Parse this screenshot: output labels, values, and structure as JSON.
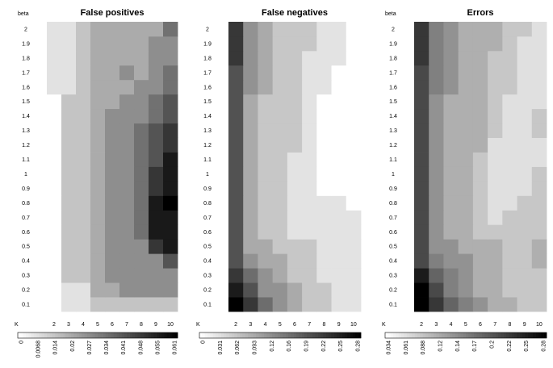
{
  "chart_data": [
    {
      "type": "heatmap",
      "title": "False positives",
      "xlabel": "K",
      "ylabel": "beta",
      "x": [
        2,
        3,
        4,
        5,
        6,
        7,
        8,
        9,
        10
      ],
      "y": [
        "0.1",
        "0.2",
        "0.3",
        "0.4",
        "0.5",
        "0.6",
        "0.7",
        "0.8",
        "0.9",
        "1",
        "1.1",
        "1.2",
        "1.3",
        "1.4",
        "1.5",
        "1.6",
        "1.7",
        "1.8",
        "1.9",
        "2"
      ],
      "colorbar": {
        "min": 0,
        "max": 0.061,
        "ticks": [
          "0",
          "0.0068",
          "0.014",
          "0.02",
          "0.027",
          "0.034",
          "0.041",
          "0.048",
          "0.055",
          "0.061"
        ]
      },
      "values": [
        [
          0,
          0.007,
          0.007,
          0.014,
          0.014,
          0.014,
          0.014,
          0.014,
          0.014
        ],
        [
          0,
          0.007,
          0.007,
          0.02,
          0.02,
          0.027,
          0.027,
          0.027,
          0.027
        ],
        [
          0,
          0.014,
          0.014,
          0.02,
          0.027,
          0.027,
          0.027,
          0.027,
          0.027
        ],
        [
          0,
          0.014,
          0.014,
          0.02,
          0.027,
          0.027,
          0.027,
          0.027,
          0.041
        ],
        [
          0,
          0.014,
          0.014,
          0.02,
          0.027,
          0.027,
          0.027,
          0.048,
          0.055
        ],
        [
          0,
          0.014,
          0.014,
          0.02,
          0.027,
          0.027,
          0.034,
          0.055,
          0.055
        ],
        [
          0,
          0.014,
          0.014,
          0.02,
          0.027,
          0.027,
          0.034,
          0.055,
          0.055
        ],
        [
          0,
          0.014,
          0.014,
          0.02,
          0.027,
          0.027,
          0.034,
          0.055,
          0.061
        ],
        [
          0,
          0.014,
          0.014,
          0.02,
          0.027,
          0.027,
          0.034,
          0.048,
          0.055
        ],
        [
          0,
          0.014,
          0.014,
          0.02,
          0.027,
          0.027,
          0.034,
          0.048,
          0.055
        ],
        [
          0,
          0.014,
          0.014,
          0.02,
          0.027,
          0.027,
          0.034,
          0.041,
          0.055
        ],
        [
          0,
          0.014,
          0.014,
          0.02,
          0.027,
          0.027,
          0.034,
          0.041,
          0.048
        ],
        [
          0,
          0.014,
          0.014,
          0.02,
          0.027,
          0.027,
          0.034,
          0.041,
          0.048
        ],
        [
          0,
          0.014,
          0.014,
          0.02,
          0.027,
          0.027,
          0.027,
          0.034,
          0.041
        ],
        [
          0,
          0.014,
          0.014,
          0.02,
          0.02,
          0.027,
          0.027,
          0.034,
          0.041
        ],
        [
          0.007,
          0.007,
          0.014,
          0.02,
          0.02,
          0.02,
          0.027,
          0.027,
          0.034
        ],
        [
          0.007,
          0.007,
          0.014,
          0.02,
          0.02,
          0.027,
          0.02,
          0.027,
          0.034
        ],
        [
          0.007,
          0.007,
          0.014,
          0.02,
          0.02,
          0.02,
          0.02,
          0.027,
          0.027
        ],
        [
          0.007,
          0.007,
          0.014,
          0.02,
          0.02,
          0.02,
          0.02,
          0.027,
          0.027
        ],
        [
          0.007,
          0.007,
          0.014,
          0.02,
          0.02,
          0.02,
          0.02,
          0.02,
          0.034
        ]
      ]
    },
    {
      "type": "heatmap",
      "title": "False negatives",
      "xlabel": "K",
      "ylabel": "",
      "x": [
        2,
        3,
        4,
        5,
        6,
        7,
        8,
        9,
        10
      ],
      "y": [
        "0.1",
        "0.2",
        "0.3",
        "0.4",
        "0.5",
        "0.6",
        "0.7",
        "0.8",
        "0.9",
        "1",
        "1.1",
        "1.2",
        "1.3",
        "1.4",
        "1.5",
        "1.6",
        "1.7",
        "1.8",
        "1.9",
        "2"
      ],
      "colorbar": {
        "min": 0,
        "max": 0.28,
        "ticks": [
          "0",
          "0.031",
          "0.062",
          "0.093",
          "0.12",
          "0.16",
          "0.19",
          "0.22",
          "0.25",
          "0.28"
        ]
      },
      "values": [
        [
          0.28,
          0.22,
          0.16,
          0.12,
          0.093,
          0.062,
          0.062,
          0.031,
          0.031
        ],
        [
          0.25,
          0.19,
          0.12,
          0.12,
          0.093,
          0.062,
          0.062,
          0.031,
          0.031
        ],
        [
          0.22,
          0.16,
          0.12,
          0.093,
          0.062,
          0.062,
          0.031,
          0.031,
          0.031
        ],
        [
          0.19,
          0.12,
          0.093,
          0.093,
          0.062,
          0.062,
          0.031,
          0.031,
          0.031
        ],
        [
          0.19,
          0.093,
          0.093,
          0.062,
          0.062,
          0.062,
          0.031,
          0.031,
          0.031
        ],
        [
          0.19,
          0.093,
          0.062,
          0.062,
          0.031,
          0.031,
          0.031,
          0.031,
          0.031
        ],
        [
          0.19,
          0.093,
          0.062,
          0.062,
          0.031,
          0.031,
          0.031,
          0.031,
          0.031
        ],
        [
          0.19,
          0.093,
          0.062,
          0.062,
          0.031,
          0.031,
          0.031,
          0.031,
          0
        ],
        [
          0.19,
          0.093,
          0.062,
          0.062,
          0.031,
          0.031,
          0,
          0,
          0
        ],
        [
          0.19,
          0.093,
          0.062,
          0.062,
          0.031,
          0.031,
          0,
          0,
          0
        ],
        [
          0.19,
          0.093,
          0.062,
          0.062,
          0.031,
          0.031,
          0,
          0,
          0
        ],
        [
          0.19,
          0.093,
          0.062,
          0.062,
          0.062,
          0.031,
          0,
          0,
          0
        ],
        [
          0.19,
          0.093,
          0.062,
          0.062,
          0.062,
          0.031,
          0,
          0,
          0
        ],
        [
          0.19,
          0.093,
          0.062,
          0.062,
          0.062,
          0.031,
          0,
          0,
          0
        ],
        [
          0.19,
          0.093,
          0.062,
          0.062,
          0.062,
          0.031,
          0,
          0,
          0
        ],
        [
          0.19,
          0.12,
          0.093,
          0.062,
          0.062,
          0.031,
          0.031,
          0,
          0
        ],
        [
          0.19,
          0.12,
          0.093,
          0.062,
          0.062,
          0.031,
          0.031,
          0,
          0
        ],
        [
          0.22,
          0.12,
          0.093,
          0.062,
          0.062,
          0.031,
          0.031,
          0.031,
          0
        ],
        [
          0.22,
          0.12,
          0.093,
          0.062,
          0.062,
          0.062,
          0.031,
          0.031,
          0
        ],
        [
          0.22,
          0.12,
          0.093,
          0.062,
          0.062,
          0.062,
          0.031,
          0.031,
          0
        ]
      ]
    },
    {
      "type": "heatmap",
      "title": "Errors",
      "xlabel": "K",
      "ylabel": "beta",
      "x": [
        2,
        3,
        4,
        5,
        6,
        7,
        8,
        9,
        10
      ],
      "y": [
        "0.1",
        "0.2",
        "0.3",
        "0.4",
        "0.5",
        "0.6",
        "0.7",
        "0.8",
        "0.9",
        "1",
        "1.1",
        "1.2",
        "1.3",
        "1.4",
        "1.5",
        "1.6",
        "1.7",
        "1.8",
        "1.9",
        "2"
      ],
      "colorbar": {
        "min": 0,
        "max": 0.28,
        "ticks": [
          "0.034",
          "0.061",
          "0.088",
          "0.12",
          "0.14",
          "0.17",
          "0.2",
          "0.22",
          "0.25",
          "0.28"
        ]
      },
      "values": [
        [
          0.28,
          0.22,
          0.17,
          0.14,
          0.12,
          0.088,
          0.088,
          0.061,
          0.061
        ],
        [
          0.28,
          0.2,
          0.14,
          0.12,
          0.088,
          0.088,
          0.061,
          0.061,
          0.061
        ],
        [
          0.25,
          0.17,
          0.14,
          0.12,
          0.088,
          0.088,
          0.061,
          0.061,
          0.061
        ],
        [
          0.2,
          0.14,
          0.12,
          0.12,
          0.088,
          0.088,
          0.061,
          0.061,
          0.088
        ],
        [
          0.2,
          0.12,
          0.12,
          0.088,
          0.088,
          0.088,
          0.061,
          0.061,
          0.088
        ],
        [
          0.2,
          0.12,
          0.088,
          0.088,
          0.061,
          0.061,
          0.061,
          0.061,
          0.061
        ],
        [
          0.2,
          0.12,
          0.088,
          0.088,
          0.061,
          0.034,
          0.061,
          0.061,
          0.061
        ],
        [
          0.2,
          0.12,
          0.088,
          0.088,
          0.061,
          0.034,
          0.034,
          0.061,
          0.061
        ],
        [
          0.2,
          0.12,
          0.088,
          0.088,
          0.061,
          0.034,
          0.034,
          0.034,
          0.061
        ],
        [
          0.2,
          0.12,
          0.088,
          0.088,
          0.061,
          0.034,
          0.034,
          0.034,
          0.061
        ],
        [
          0.2,
          0.12,
          0.088,
          0.088,
          0.061,
          0.034,
          0.034,
          0.034,
          0.034
        ],
        [
          0.2,
          0.12,
          0.088,
          0.088,
          0.088,
          0.034,
          0.034,
          0.034,
          0.034
        ],
        [
          0.2,
          0.12,
          0.088,
          0.088,
          0.088,
          0.061,
          0.034,
          0.034,
          0.061
        ],
        [
          0.2,
          0.12,
          0.088,
          0.088,
          0.088,
          0.061,
          0.034,
          0.034,
          0.061
        ],
        [
          0.2,
          0.12,
          0.088,
          0.088,
          0.088,
          0.061,
          0.034,
          0.034,
          0.034
        ],
        [
          0.2,
          0.14,
          0.12,
          0.088,
          0.088,
          0.061,
          0.061,
          0.034,
          0.034
        ],
        [
          0.2,
          0.14,
          0.12,
          0.088,
          0.088,
          0.061,
          0.061,
          0.034,
          0.034
        ],
        [
          0.22,
          0.14,
          0.12,
          0.088,
          0.088,
          0.061,
          0.061,
          0.034,
          0.034
        ],
        [
          0.22,
          0.14,
          0.12,
          0.088,
          0.088,
          0.088,
          0.061,
          0.034,
          0.034
        ],
        [
          0.22,
          0.14,
          0.12,
          0.088,
          0.088,
          0.088,
          0.061,
          0.061,
          0.034
        ]
      ]
    }
  ]
}
